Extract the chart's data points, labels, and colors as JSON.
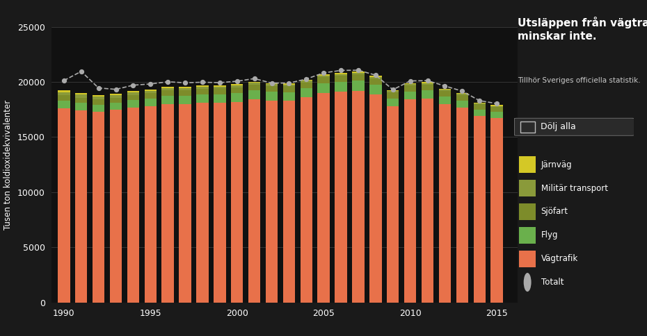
{
  "years": [
    1990,
    1991,
    1992,
    1993,
    1994,
    1995,
    1996,
    1997,
    1998,
    1999,
    2000,
    2001,
    2002,
    2003,
    2004,
    2005,
    2006,
    2007,
    2008,
    2009,
    2010,
    2011,
    2012,
    2013,
    2014,
    2015
  ],
  "vagtrafik": [
    17600,
    17400,
    17300,
    17500,
    17700,
    17800,
    18000,
    18000,
    18100,
    18100,
    18200,
    18400,
    18300,
    18300,
    18600,
    19000,
    19100,
    19200,
    18900,
    17800,
    18400,
    18500,
    18000,
    17700,
    16900,
    16700
  ],
  "flyg": [
    700,
    700,
    650,
    620,
    680,
    700,
    740,
    750,
    780,
    790,
    800,
    820,
    800,
    780,
    830,
    870,
    900,
    920,
    870,
    700,
    740,
    740,
    680,
    620,
    600,
    590
  ],
  "sjofart": [
    500,
    480,
    470,
    450,
    460,
    480,
    490,
    500,
    510,
    520,
    530,
    540,
    540,
    530,
    540,
    550,
    560,
    570,
    560,
    530,
    540,
    530,
    510,
    490,
    460,
    440
  ],
  "militar": [
    280,
    270,
    260,
    240,
    230,
    220,
    210,
    200,
    190,
    180,
    170,
    160,
    160,
    155,
    150,
    148,
    145,
    140,
    135,
    130,
    125,
    120,
    115,
    110,
    105,
    100
  ],
  "jarnvag": [
    150,
    145,
    140,
    135,
    130,
    125,
    120,
    118,
    115,
    112,
    110,
    108,
    106,
    104,
    102,
    100,
    98,
    96,
    94,
    92,
    90,
    88,
    86,
    84,
    82,
    80
  ],
  "totalt": [
    20130,
    20960,
    19460,
    19330,
    19710,
    19820,
    20020,
    19930,
    19980,
    19940,
    20070,
    20310,
    19900,
    19900,
    20270,
    20830,
    21050,
    21070,
    20620,
    19300,
    20100,
    20120,
    19640,
    19170,
    18310,
    18040
  ],
  "bg_color": "#1a1a1a",
  "ax_bg_color": "#111111",
  "vagtrafik_color": "#e8714a",
  "flyg_color": "#6ab04c",
  "sjofart_color": "#7d8c2a",
  "militar_color": "#8a9a3a",
  "jarnvag_color": "#d4c826",
  "totalt_color": "#aaaaaa",
  "grid_color": "#444444",
  "text_color": "#ffffff",
  "ylabel": "Tusen ton koldioxidekvivalenter",
  "title": "Utsläppen från vägtrafik\nminskar inte.",
  "subtitle": "Tillhör Sveriges officiella statistik.",
  "ylim": [
    0,
    25000
  ],
  "yticks": [
    0,
    5000,
    10000,
    15000,
    20000,
    25000
  ]
}
